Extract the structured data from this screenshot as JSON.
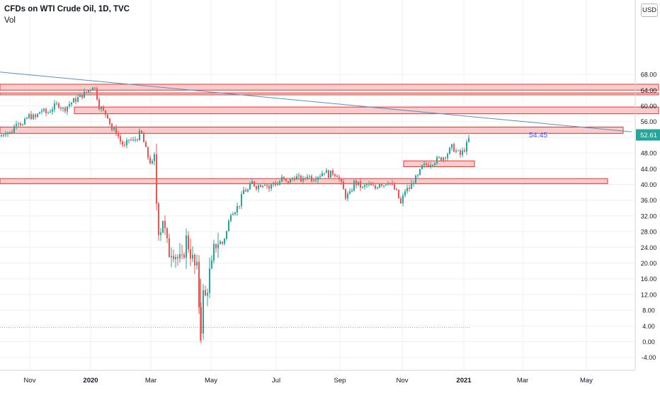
{
  "header": {
    "title": "CFDs on WTI Crude Oil, 1D, TVC",
    "indicator": "Vol",
    "currency": "USD"
  },
  "colors": {
    "up": "#26a69a",
    "down": "#ef5350",
    "zone_fill": "#f8c3c3",
    "zone_stroke": "#e53935",
    "trendline": "#5b8fc2",
    "price_tag": "#26a69a",
    "annotation": "#2962ff",
    "grid": "#eef0f3",
    "axis_text": "#131722"
  },
  "chart_data": {
    "type": "candlestick",
    "title": "CFDs on WTI Crude Oil, 1D, TVC",
    "x_ticks": [
      "Nov",
      "2020",
      "Mar",
      "May",
      "Jul",
      "Sep",
      "Nov",
      "2021",
      "Mar",
      "May"
    ],
    "y_ticks": [
      "68.00",
      "64.00",
      "60.00",
      "56.00",
      "52.00",
      "48.00",
      "44.00",
      "40.00",
      "36.00",
      "32.00",
      "28.00",
      "24.00",
      "20.00",
      "16.00",
      "12.00",
      "8.00",
      "4.00",
      "0.00",
      "-4.00"
    ],
    "ylim": [
      -5.5,
      70
    ],
    "xlim_months": [
      "2019-10",
      "2021-06"
    ],
    "last_price": "52.61",
    "annotation": "54.45",
    "dotted_level": 3.6,
    "price_path": [
      [
        0,
        52.2
      ],
      [
        8,
        53.5
      ],
      [
        16,
        53.0
      ],
      [
        24,
        56.5
      ],
      [
        32,
        55.0
      ],
      [
        40,
        57.5
      ],
      [
        50,
        57.0
      ],
      [
        58,
        59.0
      ],
      [
        66,
        58.0
      ],
      [
        74,
        59.5
      ],
      [
        82,
        60.5
      ],
      [
        90,
        59.0
      ],
      [
        98,
        60.5
      ],
      [
        106,
        61.5
      ],
      [
        114,
        62.5
      ],
      [
        122,
        63.5
      ],
      [
        128,
        64.5
      ],
      [
        132,
        65.5
      ],
      [
        136,
        63.0
      ],
      [
        140,
        60.0
      ],
      [
        146,
        58.5
      ],
      [
        152,
        57.5
      ],
      [
        158,
        54.0
      ],
      [
        164,
        53.5
      ],
      [
        170,
        51.0
      ],
      [
        176,
        49.5
      ],
      [
        182,
        51.5
      ],
      [
        188,
        51.0
      ],
      [
        194,
        52.0
      ],
      [
        199,
        53.5
      ],
      [
        204,
        50.0
      ],
      [
        209,
        47.0
      ],
      [
        214,
        45.0
      ],
      [
        219,
        46.5
      ],
      [
        222,
        30.0
      ],
      [
        226,
        28.0
      ],
      [
        230,
        31.5
      ],
      [
        234,
        26.5
      ],
      [
        238,
        22.5
      ],
      [
        242,
        23.5
      ],
      [
        246,
        23.0
      ],
      [
        250,
        21.5
      ],
      [
        254,
        20.5
      ],
      [
        258,
        20.0
      ],
      [
        262,
        26.5
      ],
      [
        266,
        24.5
      ],
      [
        270,
        22.0
      ],
      [
        275,
        19.0
      ],
      [
        279,
        18.0
      ],
      [
        283,
        1.0
      ],
      [
        287,
        12.0
      ],
      [
        291,
        11.0
      ],
      [
        295,
        17.0
      ],
      [
        299,
        19.0
      ],
      [
        303,
        24.5
      ],
      [
        308,
        25.5
      ],
      [
        314,
        25.0
      ],
      [
        320,
        28.0
      ],
      [
        326,
        33.0
      ],
      [
        332,
        33.5
      ],
      [
        338,
        35.0
      ],
      [
        344,
        38.5
      ],
      [
        350,
        38.5
      ],
      [
        356,
        40.5
      ],
      [
        362,
        39.5
      ],
      [
        368,
        40.0
      ],
      [
        374,
        40.5
      ],
      [
        380,
        39.0
      ],
      [
        386,
        40.5
      ],
      [
        392,
        40.0
      ],
      [
        398,
        41.5
      ],
      [
        404,
        40.5
      ],
      [
        410,
        41.0
      ],
      [
        416,
        42.0
      ],
      [
        422,
        41.5
      ],
      [
        428,
        41.0
      ],
      [
        434,
        42.5
      ],
      [
        440,
        41.5
      ],
      [
        446,
        42.0
      ],
      [
        452,
        42.5
      ],
      [
        458,
        43.5
      ],
      [
        464,
        42.5
      ],
      [
        470,
        43.0
      ],
      [
        476,
        42.5
      ],
      [
        482,
        40.0
      ],
      [
        488,
        37.0
      ],
      [
        494,
        37.5
      ],
      [
        500,
        40.5
      ],
      [
        506,
        40.0
      ],
      [
        512,
        39.0
      ],
      [
        518,
        40.0
      ],
      [
        524,
        39.5
      ],
      [
        530,
        39.0
      ],
      [
        536,
        40.5
      ],
      [
        542,
        40.0
      ],
      [
        548,
        41.0
      ],
      [
        554,
        39.5
      ],
      [
        560,
        38.0
      ],
      [
        566,
        35.0
      ],
      [
        572,
        38.5
      ],
      [
        578,
        39.0
      ],
      [
        584,
        41.0
      ],
      [
        590,
        42.0
      ],
      [
        596,
        44.5
      ],
      [
        602,
        45.0
      ],
      [
        608,
        45.5
      ],
      [
        614,
        46.0
      ],
      [
        620,
        46.5
      ],
      [
        626,
        47.0
      ],
      [
        632,
        48.0
      ],
      [
        638,
        49.5
      ],
      [
        644,
        48.5
      ],
      [
        650,
        47.5
      ],
      [
        656,
        49.0
      ],
      [
        660,
        50.5
      ],
      [
        664,
        52.61
      ]
    ],
    "zones": [
      {
        "price_top": 65.5,
        "price_bottom": 64.0,
        "x_start": 0,
        "x_end": 930
      },
      {
        "price_top": 63.3,
        "price_bottom": 62.8,
        "x_start": 0,
        "x_end": 930
      },
      {
        "price_top": 59.7,
        "price_bottom": 58.0,
        "x_start": 105,
        "x_end": 930
      },
      {
        "price_top": 54.6,
        "price_bottom": 53.0,
        "x_start": 0,
        "x_end": 880
      },
      {
        "price_top": 46.0,
        "price_bottom": 44.5,
        "x_start": 570,
        "x_end": 670
      },
      {
        "price_top": 41.5,
        "price_bottom": 40.2,
        "x_start": 0,
        "x_end": 858
      }
    ],
    "trendline": {
      "p1": [
        0,
        68.6
      ],
      "p2": [
        892,
        53.4
      ]
    }
  }
}
